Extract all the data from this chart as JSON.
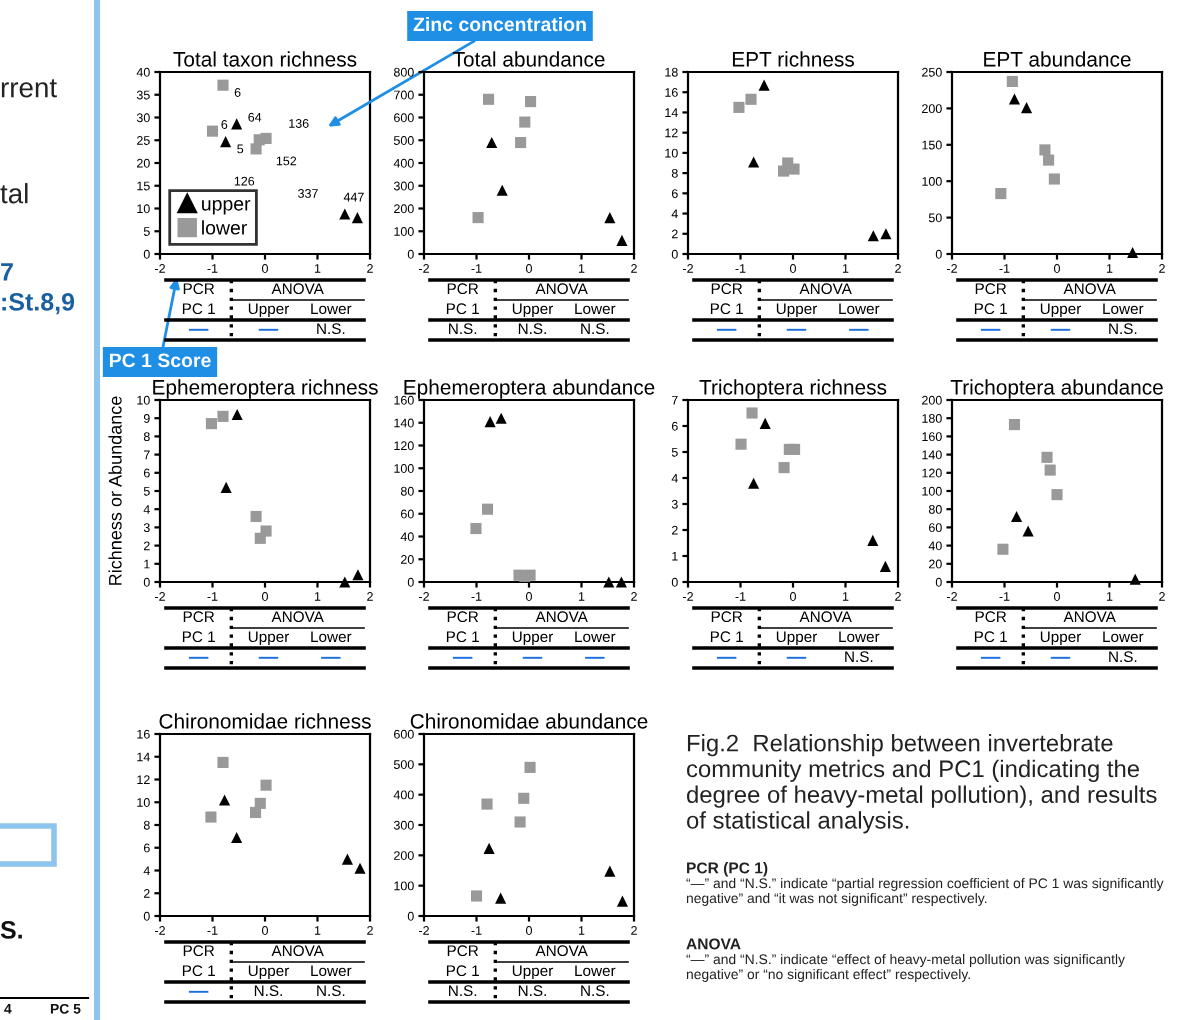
{
  "chart_data": [
    {
      "type": "other",
      "annotations": [
        "rrent",
        "tal",
        "7",
        ":St.8,9",
        "S.",
        "4",
        "PC 5"
      ]
    },
    {
      "type": "scatter",
      "title": "Total taxon richness",
      "xlim": [
        -2,
        2
      ],
      "xticks": [
        -2,
        -1,
        0,
        1,
        2
      ],
      "ylim": [
        0,
        40
      ],
      "yticks": [
        0,
        5,
        10,
        15,
        20,
        25,
        30,
        35,
        40
      ],
      "legend": "bottom left",
      "series": [
        {
          "name": "upper",
          "color": "#000000",
          "marker": "triangle",
          "x": [
            -0.75,
            -0.54,
            1.52,
            1.76
          ],
          "values": [
            24.7,
            28.6,
            8.8,
            8.0
          ]
        },
        {
          "name": "lower",
          "color": "#999999",
          "marker": "square",
          "x": [
            -1.0,
            -0.8,
            -0.17,
            -0.11,
            0.02
          ],
          "values": [
            27.0,
            37.1,
            23.1,
            25.1,
            25.4
          ]
        }
      ],
      "annotations": [
        "PCR",
        "PC 1",
        "ANOVA",
        "Upper",
        "Lower",
        "—",
        "—",
        "N.S.",
        {
          "text": "6",
          "x": -0.8,
          "y": 37.1
        },
        {
          "text": "64",
          "x": -0.54,
          "y": 28.6
        },
        {
          "text": "6",
          "x": -1.0,
          "y": 27.0
        },
        {
          "text": "5",
          "x": -0.75,
          "y": 24.7
        },
        {
          "text": "136",
          "x": 0.02,
          "y": 25.4
        },
        {
          "text": "152",
          "x": -0.11,
          "y": 25.1
        },
        {
          "text": "126",
          "x": -0.17,
          "y": 23.1
        },
        {
          "text": "337",
          "x": 1.52,
          "y": 8.8
        },
        {
          "text": "447",
          "x": 1.76,
          "y": 8.0
        },
        "Zinc concentration",
        "PC 1 Score"
      ]
    },
    {
      "type": "scatter",
      "title": "Total abundance",
      "xlim": [
        -2,
        2
      ],
      "xticks": [
        -2,
        -1,
        0,
        1,
        2
      ],
      "ylim": [
        0,
        800
      ],
      "yticks": [
        0,
        100,
        200,
        300,
        400,
        500,
        600,
        700,
        800
      ],
      "series": [
        {
          "color": "#000000",
          "marker": "triangle",
          "x": [
            -0.71,
            -0.51,
            1.54,
            1.77
          ],
          "values": [
            490,
            280,
            160,
            60
          ]
        },
        {
          "color": "#999999",
          "marker": "square",
          "x": [
            -0.97,
            -0.77,
            -0.16,
            -0.08,
            0.03
          ],
          "values": [
            160,
            680,
            490,
            580,
            670
          ]
        }
      ],
      "annotations": [
        "PCR",
        "PC 1",
        "ANOVA",
        "Upper",
        "Lower",
        "N.S.",
        "N.S.",
        "N.S."
      ]
    },
    {
      "type": "scatter",
      "title": "EPT richness",
      "xlim": [
        -2,
        2
      ],
      "xticks": [
        -2,
        -1,
        0,
        1,
        2
      ],
      "ylim": [
        0,
        18
      ],
      "yticks": [
        0,
        2,
        4,
        6,
        8,
        10,
        12,
        14,
        16,
        18
      ],
      "series": [
        {
          "color": "#000000",
          "marker": "triangle",
          "x": [
            -0.75,
            -0.55,
            1.53,
            1.77
          ],
          "values": [
            9.1,
            16.7,
            1.8,
            2.0
          ]
        },
        {
          "color": "#999999",
          "marker": "square",
          "x": [
            -1.03,
            -0.8,
            -0.18,
            -0.1,
            0.02
          ],
          "values": [
            14.5,
            15.3,
            8.2,
            9.0,
            8.4
          ]
        }
      ],
      "annotations": [
        "PCR",
        "PC 1",
        "ANOVA",
        "Upper",
        "Lower",
        "—",
        "—",
        "—"
      ]
    },
    {
      "type": "scatter",
      "title": "EPT abundance",
      "xlim": [
        -2,
        2
      ],
      "xticks": [
        -2,
        -1,
        0,
        1,
        2
      ],
      "ylim": [
        0,
        250
      ],
      "yticks": [
        0,
        50,
        100,
        150,
        200,
        250
      ],
      "series": [
        {
          "color": "#000000",
          "marker": "triangle",
          "x": [
            -0.81,
            -0.58,
            1.44,
            null
          ],
          "values": [
            213,
            201,
            2,
            null
          ]
        },
        {
          "color": "#999999",
          "marker": "square",
          "x": [
            -1.07,
            -0.85,
            -0.23,
            -0.16,
            -0.05
          ],
          "values": [
            83,
            237,
            143,
            129,
            103
          ]
        }
      ],
      "annotations": [
        "PCR",
        "PC 1",
        "ANOVA",
        "Upper",
        "Lower",
        "—",
        "—",
        "N.S."
      ]
    },
    {
      "type": "scatter",
      "title": "Ephemeroptera richness",
      "ylabel": "Richness or Abundance",
      "xlim": [
        -2,
        2
      ],
      "xticks": [
        -2,
        -1,
        0,
        1,
        2
      ],
      "ylim": [
        0,
        10
      ],
      "yticks": [
        0,
        1,
        2,
        3,
        4,
        5,
        6,
        7,
        8,
        9,
        10
      ],
      "series": [
        {
          "color": "#000000",
          "marker": "triangle",
          "x": [
            -0.74,
            -0.53,
            1.52,
            1.77
          ],
          "values": [
            5.2,
            9.2,
            0,
            0.4
          ]
        },
        {
          "color": "#999999",
          "marker": "square",
          "x": [
            -1.02,
            -0.8,
            -0.17,
            -0.09,
            0.02
          ],
          "values": [
            8.7,
            9.1,
            3.6,
            2.4,
            2.8
          ]
        }
      ],
      "annotations": [
        "PCR",
        "PC 1",
        "ANOVA",
        "Upper",
        "Lower",
        "—",
        "—",
        "—"
      ]
    },
    {
      "type": "scatter",
      "title": "Ephemeroptera abundance",
      "xlim": [
        -2,
        2
      ],
      "xticks": [
        -2,
        -1,
        0,
        1,
        2
      ],
      "ylim": [
        0,
        160
      ],
      "yticks": [
        0,
        20,
        40,
        60,
        80,
        100,
        120,
        140,
        160
      ],
      "series": [
        {
          "color": "#000000",
          "marker": "triangle",
          "x": [
            -0.74,
            -0.53,
            1.52,
            1.76
          ],
          "values": [
            141,
            144,
            0,
            0
          ]
        },
        {
          "color": "#999999",
          "marker": "square",
          "x": [
            -1.01,
            -0.79,
            -0.19,
            -0.08,
            0.02
          ],
          "values": [
            47,
            64,
            6,
            5,
            6
          ]
        }
      ],
      "annotations": [
        "PCR",
        "PC 1",
        "ANOVA",
        "Upper",
        "Lower",
        "—",
        "—",
        "—"
      ]
    },
    {
      "type": "scatter",
      "title": "Trichoptera richness",
      "xlim": [
        -2,
        2
      ],
      "xticks": [
        -2,
        -1,
        0,
        1,
        2
      ],
      "ylim": [
        0,
        7
      ],
      "yticks": [
        0,
        1,
        2,
        3,
        4,
        5,
        6,
        7
      ],
      "series": [
        {
          "color": "#000000",
          "marker": "triangle",
          "x": [
            -0.75,
            -0.53,
            1.52,
            1.76
          ],
          "values": [
            3.8,
            6.1,
            1.6,
            0.6
          ]
        },
        {
          "color": "#999999",
          "marker": "square",
          "x": [
            -0.99,
            -0.78,
            -0.17,
            -0.07,
            0.03
          ],
          "values": [
            5.3,
            6.5,
            4.4,
            5.1,
            5.1
          ]
        }
      ],
      "annotations": [
        "PCR",
        "PC 1",
        "ANOVA",
        "Upper",
        "Lower",
        "—",
        "—",
        "N.S."
      ]
    },
    {
      "type": "scatter",
      "title": "Trichoptera abundance",
      "xlim": [
        -2,
        2
      ],
      "xticks": [
        -2,
        -1,
        0,
        1,
        2
      ],
      "ylim": [
        0,
        200
      ],
      "yticks": [
        0,
        20,
        40,
        60,
        80,
        100,
        120,
        140,
        160,
        180,
        200
      ],
      "series": [
        {
          "color": "#000000",
          "marker": "triangle",
          "x": [
            -0.77,
            -0.55,
            1.49,
            null
          ],
          "values": [
            72,
            56,
            3,
            null
          ]
        },
        {
          "color": "#999999",
          "marker": "square",
          "x": [
            -1.03,
            -0.81,
            -0.19,
            -0.13,
            0.0
          ],
          "values": [
            36,
            173,
            137,
            123,
            96
          ]
        }
      ],
      "annotations": [
        "PCR",
        "PC 1",
        "ANOVA",
        "Upper",
        "Lower",
        "—",
        "—",
        "N.S."
      ]
    },
    {
      "type": "scatter",
      "title": "Chironomidae richness",
      "xlim": [
        -2,
        2
      ],
      "xticks": [
        -2,
        -1,
        0,
        1,
        2
      ],
      "ylim": [
        0,
        16
      ],
      "yticks": [
        0,
        2,
        4,
        6,
        8,
        10,
        12,
        14,
        16
      ],
      "series": [
        {
          "color": "#000000",
          "marker": "triangle",
          "x": [
            -0.77,
            -0.54,
            1.57,
            1.81
          ],
          "values": [
            10.2,
            6.9,
            5.0,
            4.2
          ]
        },
        {
          "color": "#999999",
          "marker": "square",
          "x": [
            -1.03,
            -0.8,
            -0.18,
            -0.09,
            0.02
          ],
          "values": [
            8.7,
            13.5,
            9.1,
            9.9,
            11.5
          ]
        }
      ],
      "annotations": [
        "PCR",
        "PC 1",
        "ANOVA",
        "Upper",
        "Lower",
        "—",
        "N.S.",
        "N.S."
      ]
    },
    {
      "type": "scatter",
      "title": "Chironomidae abundance",
      "xlim": [
        -2,
        2
      ],
      "xticks": [
        -2,
        -1,
        0,
        1,
        2
      ],
      "ylim": [
        0,
        600
      ],
      "yticks": [
        0,
        100,
        200,
        300,
        400,
        500,
        600
      ],
      "series": [
        {
          "color": "#000000",
          "marker": "triangle",
          "x": [
            -0.76,
            -0.54,
            1.54,
            1.78
          ],
          "values": [
            223,
            59,
            148,
            49
          ]
        },
        {
          "color": "#999999",
          "marker": "square",
          "x": [
            -1.0,
            -0.8,
            -0.17,
            -0.1,
            0.02
          ],
          "values": [
            66,
            369,
            310,
            388,
            490
          ]
        }
      ],
      "annotations": [
        "PCR",
        "PC 1",
        "ANOVA",
        "Upper",
        "Lower",
        "N.S.",
        "N.S.",
        "N.S."
      ]
    },
    {
      "type": "other",
      "title": "Fig.2  Relationship between invertebrate community metrics and PC1 (indicating the degree of heavy-metal pollution), and results of statistical analysis.",
      "annotations": [
        "PCR (PC 1)",
        "“—” and “N.S.” indicate “partial regression coefficient of PC 1 was significantly negative” and “it was not significant” respectively.",
        "ANOVA",
        "“—” and “N.S.” indicate “effect of heavy-metal pollution was significantly negative” or “no significant effect” respectively."
      ]
    }
  ]
}
